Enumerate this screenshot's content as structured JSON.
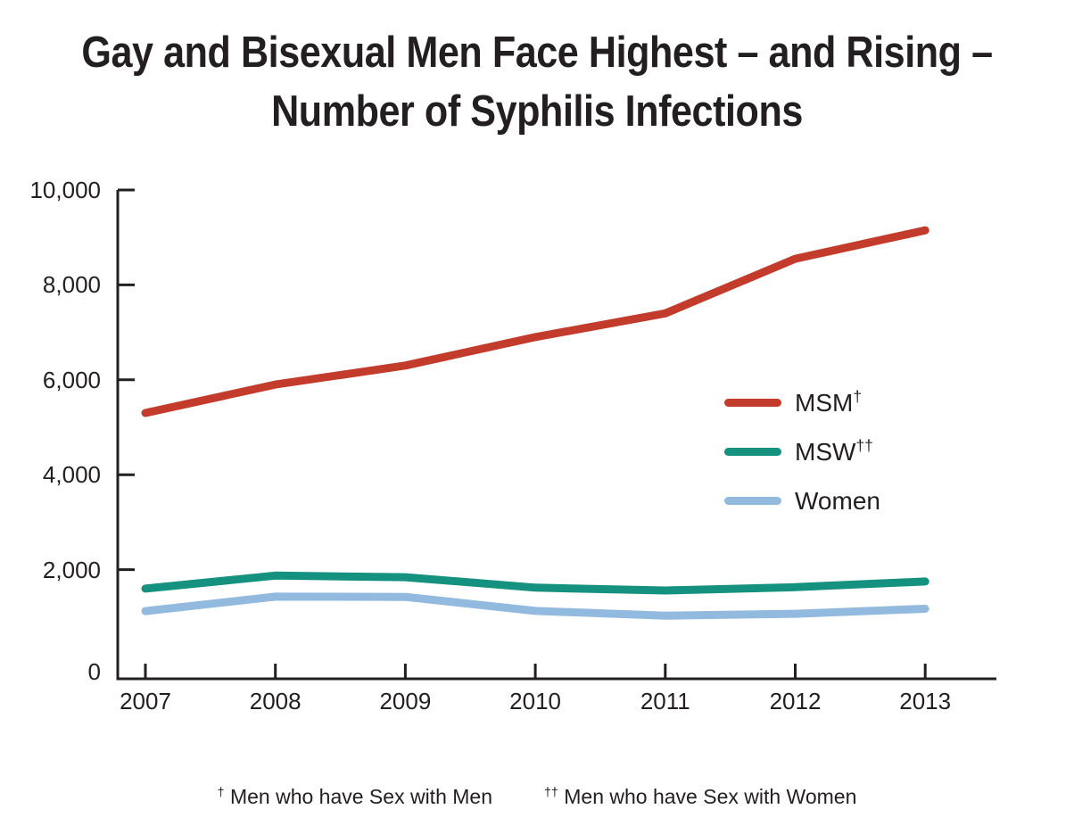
{
  "title": {
    "line1": "Gay and Bisexual Men Face Highest – and Rising –",
    "line2": "Number of Syphilis Infections"
  },
  "colors": {
    "msm": "#C23B2B",
    "msw": "#14917F",
    "women": "#92B9DE",
    "text": "#231F20",
    "axis": "#231F20"
  },
  "legend": {
    "items": [
      {
        "name": "MSM",
        "dagger": "†",
        "series": "msm"
      },
      {
        "name": "MSW",
        "dagger": "††",
        "series": "msw"
      },
      {
        "name": "Women",
        "dagger": "",
        "series": "women"
      }
    ]
  },
  "footnotes": [
    {
      "dagger": "†",
      "text": "Men who have Sex with Men"
    },
    {
      "dagger": "††",
      "text": "Men who have Sex with Women"
    }
  ],
  "chart_data": {
    "type": "line",
    "title": "Gay and Bisexual Men Face Highest – and Rising – Number of Syphilis Infections",
    "categories": [
      "2007",
      "2008",
      "2009",
      "2010",
      "2011",
      "2012",
      "2013"
    ],
    "series": [
      {
        "name": "MSM†",
        "color_key": "msm",
        "values": [
          5300,
          5900,
          6300,
          6900,
          7400,
          8550,
          9150
        ]
      },
      {
        "name": "MSW††",
        "color_key": "msw",
        "values": [
          1600,
          1875,
          1840,
          1620,
          1560,
          1630,
          1750
        ]
      },
      {
        "name": "Women",
        "color_key": "women",
        "values": [
          1125,
          1430,
          1425,
          1130,
          1030,
          1070,
          1175
        ]
      }
    ],
    "xlabel": "",
    "ylabel": "",
    "ylim": [
      0,
      10000
    ],
    "y_ticks": [
      {
        "value": 10000,
        "label": "10,000"
      },
      {
        "value": 8000,
        "label": "8,000"
      },
      {
        "value": 6000,
        "label": "6,000"
      },
      {
        "value": 4000,
        "label": "4,000"
      },
      {
        "value": 2000,
        "label": "2,000"
      },
      {
        "value": 0,
        "label": "0"
      }
    ],
    "grid": false,
    "legend_position": "right-middle"
  }
}
